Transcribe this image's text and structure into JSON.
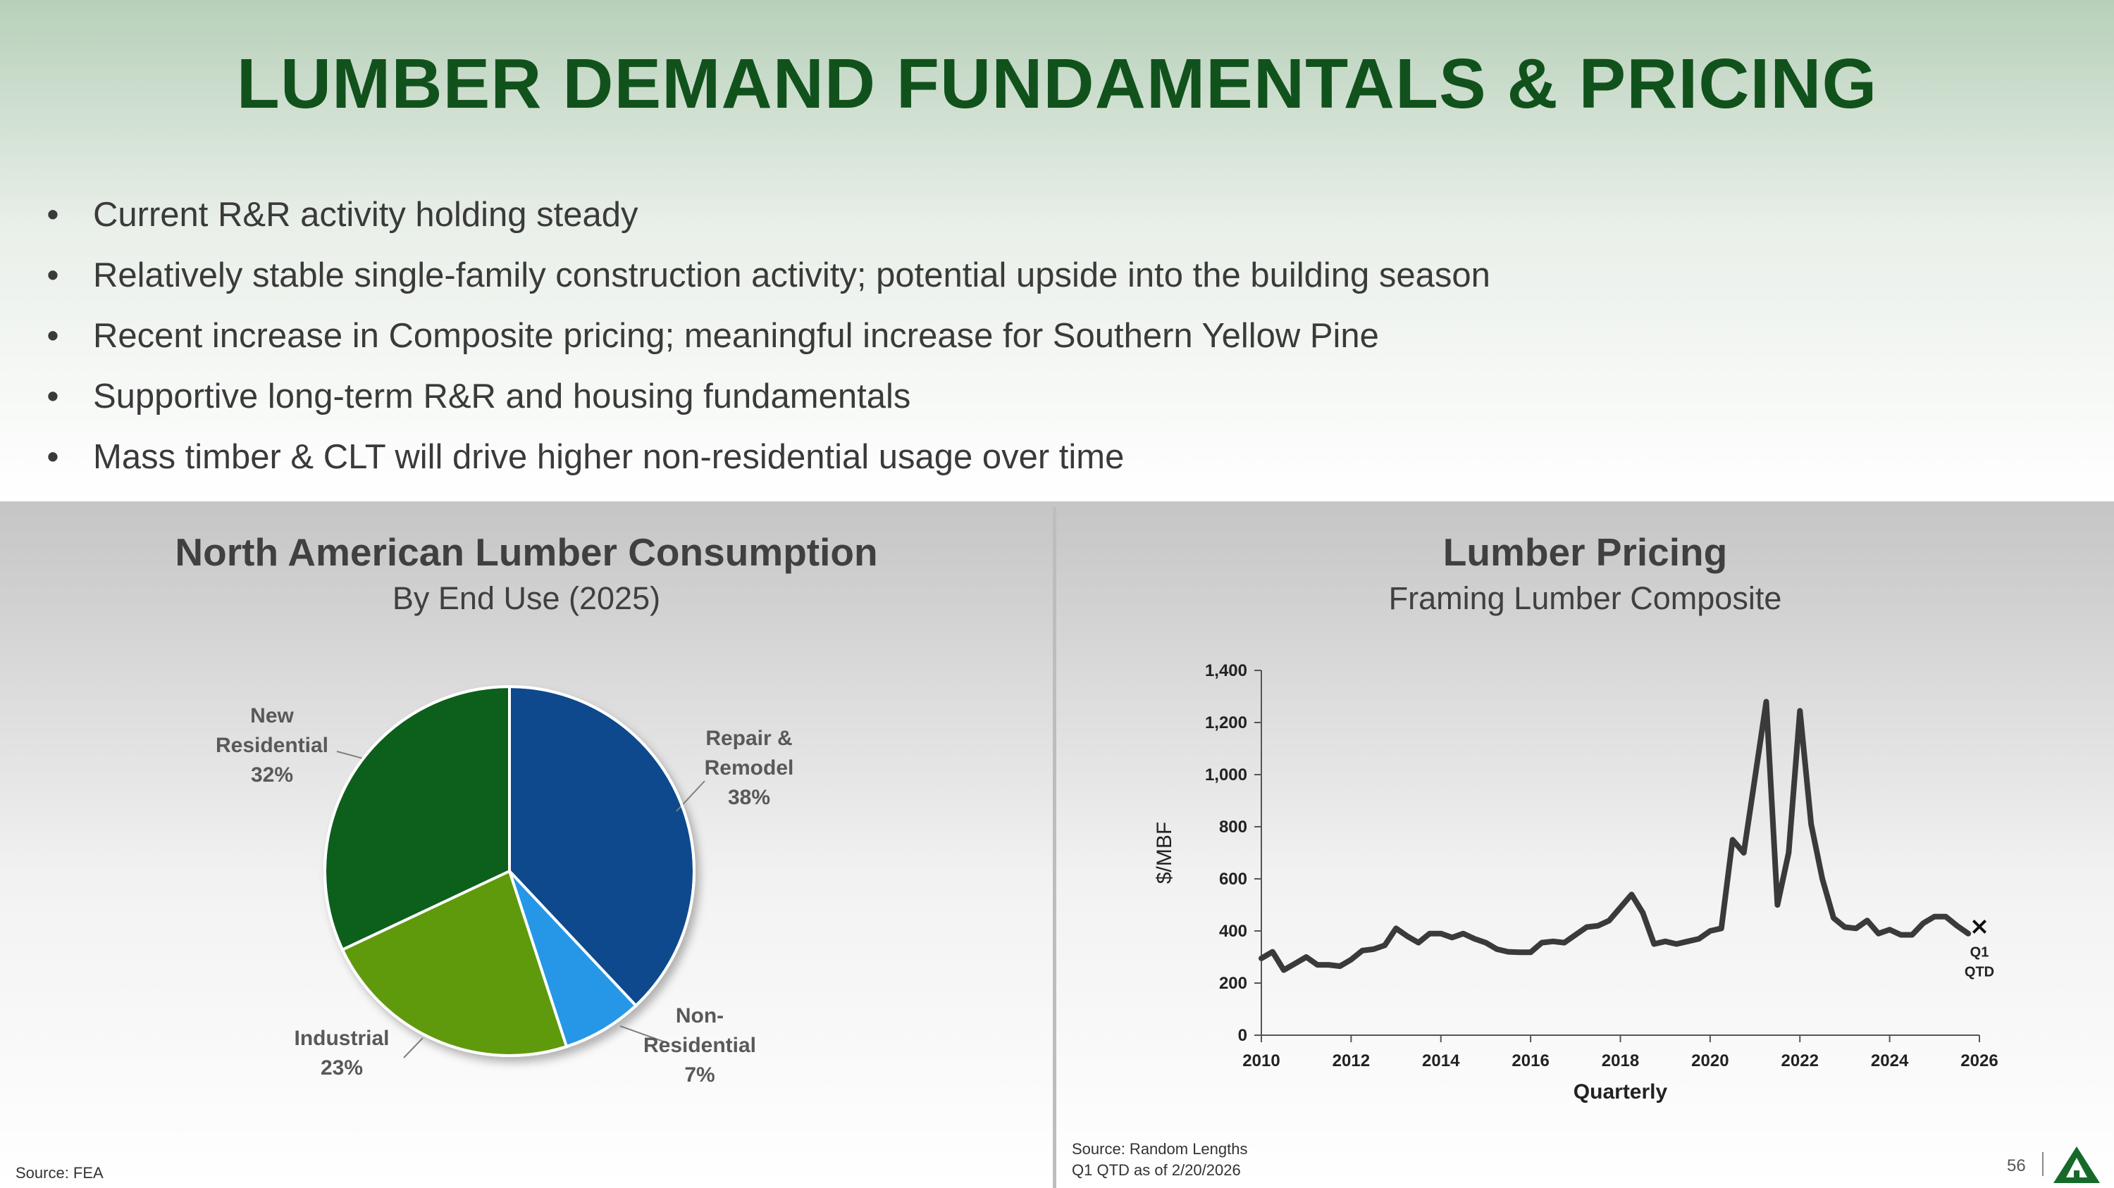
{
  "header": {
    "title": "LUMBER DEMAND FUNDAMENTALS & PRICING",
    "bullets": [
      "Current R&R activity holding steady",
      "Relatively stable single-family construction activity; potential upside into the building season",
      "Recent increase in Composite pricing; meaningful increase for Southern Yellow Pine",
      "Supportive long-term R&R and housing fundamentals",
      "Mass timber & CLT will drive higher non-residential usage over time"
    ]
  },
  "colors": {
    "title_green": "#11521c",
    "repair": "#0f4a8c",
    "nonres": "#2597e6",
    "industrial": "#5f9a0f",
    "newres": "#0a5e1a",
    "line": "#3a3a3a"
  },
  "left_panel": {
    "title": "North American Lumber Consumption",
    "subtitle": "By End Use (2025)",
    "source": "Source: FEA"
  },
  "right_panel": {
    "title": "Lumber Pricing",
    "subtitle": "Framing Lumber Composite",
    "source_line1": "Source: Random Lengths",
    "source_line2": "Q1 QTD as of 2/20/2026"
  },
  "chart_data": [
    {
      "type": "pie",
      "title": "North American Lumber Consumption",
      "subtitle": "By End Use (2025)",
      "slices": [
        {
          "label_line1": "Repair &",
          "label_line2": "Remodel",
          "value_label": "38%",
          "value": 38,
          "color": "#0f4a8c"
        },
        {
          "label_line1": "Non-",
          "label_line2": "Residential",
          "value_label": "7%",
          "value": 7,
          "color": "#2597e6"
        },
        {
          "label_line1": "Industrial",
          "label_line2": "",
          "value_label": "23%",
          "value": 23,
          "color": "#5f9a0f"
        },
        {
          "label_line1": "New",
          "label_line2": "Residential",
          "value_label": "32%",
          "value": 32,
          "color": "#0a5e1a"
        }
      ]
    },
    {
      "type": "line",
      "title": "Lumber Pricing",
      "subtitle": "Framing Lumber Composite",
      "xlabel": "Quarterly",
      "ylabel": "$/MBF",
      "xlim": [
        2010,
        2026
      ],
      "ylim": [
        0,
        1400
      ],
      "x_ticks": [
        "2010",
        "2012",
        "2014",
        "2016",
        "2018",
        "2020",
        "2022",
        "2024",
        "2026"
      ],
      "y_ticks": [
        "0",
        "200",
        "400",
        "600",
        "800",
        "1,000",
        "1,200",
        "1,400"
      ],
      "series": [
        {
          "x": [
            2010.0,
            2010.25,
            2010.5,
            2010.75,
            2011.0,
            2011.25,
            2011.5,
            2011.75,
            2012.0,
            2012.25,
            2012.5,
            2012.75,
            2013.0,
            2013.25,
            2013.5,
            2013.75,
            2014.0,
            2014.25,
            2014.5,
            2014.75,
            2015.0,
            2015.25,
            2015.5,
            2015.75,
            2016.0,
            2016.25,
            2016.5,
            2016.75,
            2017.0,
            2017.25,
            2017.5,
            2017.75,
            2018.0,
            2018.25,
            2018.5,
            2018.75,
            2019.0,
            2019.25,
            2019.5,
            2019.75,
            2020.0,
            2020.25,
            2020.5,
            2020.75,
            2021.0,
            2021.25,
            2021.5,
            2021.75,
            2022.0,
            2022.25,
            2022.5,
            2022.75,
            2023.0,
            2023.25,
            2023.5,
            2023.75,
            2024.0,
            2024.25,
            2024.5,
            2024.75,
            2025.0,
            2025.25,
            2025.5,
            2025.75
          ],
          "y": [
            295,
            320,
            250,
            275,
            300,
            270,
            270,
            265,
            290,
            325,
            330,
            345,
            410,
            380,
            355,
            390,
            390,
            375,
            390,
            370,
            355,
            330,
            320,
            318,
            318,
            355,
            360,
            355,
            385,
            415,
            420,
            440,
            490,
            540,
            470,
            350,
            360,
            350,
            360,
            370,
            400,
            410,
            750,
            700,
            990,
            1280,
            500,
            700,
            1245,
            810,
            600,
            450,
            415,
            410,
            440,
            390,
            405,
            385,
            385,
            430,
            455,
            455,
            420,
            390
          ]
        }
      ],
      "marker": {
        "x": 2026.0,
        "y": 420,
        "symbol": "×",
        "label_line1": "Q1",
        "label_line2": "QTD"
      }
    }
  ],
  "footer": {
    "page_number": "56",
    "logo": "triangle-logo"
  }
}
